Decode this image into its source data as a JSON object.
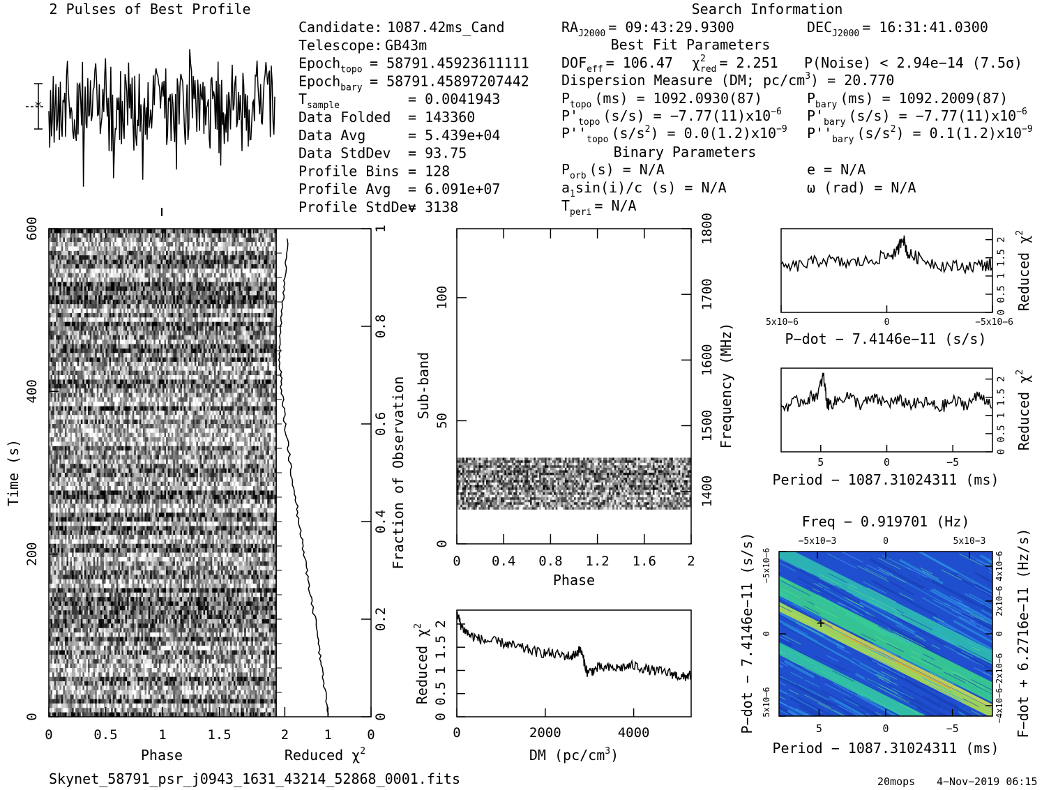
{
  "profile": {
    "title": "2 Pulses of Best Profile"
  },
  "candidate_info": {
    "rows": [
      {
        "label": "Candidate:",
        "value": "1087.42ms_Cand"
      },
      {
        "label": "Telescope:",
        "value": "GB43m"
      },
      {
        "label": "Epoch",
        "sub": "topo",
        "value": "= 58791.45923611111"
      },
      {
        "label": "Epoch",
        "sub": "bary",
        "value": "= 58791.45897207442"
      },
      {
        "label": "T",
        "sub": "sample",
        "value": "=  0.0041943"
      },
      {
        "label": "Data Folded",
        "value": "=  143360"
      },
      {
        "label": "Data Avg",
        "value": "=  5.439e+04"
      },
      {
        "label": "Data StdDev",
        "value": "=  93.75"
      },
      {
        "label": "Profile Bins",
        "value": "=  128"
      },
      {
        "label": "Profile Avg",
        "value": "=  6.091e+07"
      },
      {
        "label": "Profile StdDev",
        "value": "=  3138"
      }
    ]
  },
  "search_info": {
    "title": "Search Information",
    "ra": {
      "label": "RA",
      "sub": "J2000",
      "value": "= 09:43:29.9300"
    },
    "dec": {
      "label": "DEC",
      "sub": "J2000",
      "value": "= 16:31:41.0300"
    },
    "best_fit_title": "Best Fit Parameters",
    "dof": {
      "label": "DOF",
      "sub": "eff",
      "value": "= 106.47"
    },
    "chi2": {
      "label": "χ",
      "sup": "2",
      "sub": "red",
      "value": "= 2.251"
    },
    "pnoise": "P(Noise) < 2.94e−14   (7.5σ)",
    "dm": {
      "text": "Dispersion Measure (DM; pc/cm",
      "sup": "3",
      "tail": ") = 20.770"
    },
    "ptopo": {
      "label": "P",
      "sub": "topo",
      "value": "(ms) =  1092.0930(87)"
    },
    "pbary": {
      "label": "P",
      "sub": "bary",
      "value": "(ms) =  1092.2009(87)"
    },
    "pdot_topo": {
      "label": "P'",
      "sub": "topo",
      "value": "(s/s) = −7.77(11)x10",
      "sup": "−6"
    },
    "pdot_bary": {
      "label": "P'",
      "sub": "bary",
      "value": "(s/s) = −7.77(11)x10",
      "sup": "−6"
    },
    "pddot_topo": {
      "label": "P''",
      "sub": "topo",
      "value": "(s/s",
      "sup2": "2",
      "value2": ") = 0.0(1.2)x10",
      "sup": "−9"
    },
    "pddot_bary": {
      "label": "P''",
      "sub": "bary",
      "value": "(s/s",
      "sup2": "2",
      "value2": ") =  0.1(1.2)x10",
      "sup": "−9"
    },
    "binary_title": "Binary Parameters",
    "porb": {
      "label": "P",
      "sub": "orb",
      "value": "(s) = N/A"
    },
    "ecc": "e = N/A",
    "a1sini": {
      "text": "a",
      "sub": "1",
      "tail": "sin(i)/c (s) = N/A"
    },
    "omega": "ω (rad) = N/A",
    "tperi": {
      "label": "T",
      "sub": "peri",
      "value": "= N/A"
    }
  },
  "chart_data": [
    {
      "id": "time-phase",
      "type": "heatmap",
      "xlabel": "Phase",
      "ylabel": "Time (s)",
      "xlim": [
        0,
        2
      ],
      "ylim": [
        0,
        600
      ],
      "xticks": [
        "0",
        "0.5",
        "1",
        "1.5"
      ],
      "yticks": [
        "0",
        "200",
        "400",
        "600"
      ],
      "colormap": "grayscale"
    },
    {
      "id": "time-chi2",
      "type": "line",
      "xlabel": "Reduced χ2",
      "ylabel": "Fraction of Observation",
      "xlim": [
        2.2,
        0
      ],
      "ylim": [
        0,
        1
      ],
      "xticks": [
        "2",
        "1",
        "0"
      ],
      "yticks": [
        "0",
        "0.2",
        "0.4",
        "0.6",
        "0.8",
        "1"
      ],
      "x": [
        1.0,
        1.05,
        1.15,
        1.22,
        1.3,
        1.4,
        1.5,
        1.58,
        1.68,
        1.75,
        1.85,
        1.92,
        2.0,
        2.05,
        2.1,
        2.12,
        2.1,
        2.05,
        2.0,
        1.95
      ],
      "y": [
        0.0,
        0.05,
        0.1,
        0.15,
        0.2,
        0.25,
        0.3,
        0.35,
        0.4,
        0.45,
        0.5,
        0.55,
        0.6,
        0.65,
        0.7,
        0.75,
        0.8,
        0.85,
        0.9,
        0.98
      ]
    },
    {
      "id": "subband-phase",
      "type": "heatmap",
      "xlabel": "Phase",
      "ylabel": "Sub-band",
      "y2label": "Frequency (MHz)",
      "xlim": [
        0,
        2
      ],
      "ylim": [
        0,
        128
      ],
      "y2lim": [
        1320,
        1800
      ],
      "xticks": [
        "0",
        "0.4",
        "0.8",
        "1.2",
        "1.6",
        "2"
      ],
      "yticks": [
        "0",
        "50",
        "100"
      ],
      "y2ticks": [
        "1400",
        "1500",
        "1600",
        "1700",
        "1800"
      ],
      "band_subbands": [
        14,
        35
      ]
    },
    {
      "id": "dm-chi2",
      "type": "line",
      "xlabel": "DM (pc/cm3)",
      "ylabel": "Reduced χ2",
      "xlim": [
        0,
        5300
      ],
      "ylim": [
        0,
        2.3
      ],
      "xticks": [
        "0",
        "2000",
        "4000"
      ],
      "yticks": [
        "0",
        "0.5",
        "1",
        "1.5",
        "2"
      ],
      "x": [
        0,
        100,
        300,
        600,
        1000,
        1400,
        1800,
        2200,
        2600,
        2800,
        2950,
        3200,
        3600,
        4000,
        4400,
        4800,
        5100,
        5300
      ],
      "y": [
        2.25,
        1.95,
        1.75,
        1.65,
        1.6,
        1.5,
        1.4,
        1.35,
        1.3,
        1.45,
        0.95,
        1.05,
        1.05,
        1.1,
        1.0,
        0.95,
        0.85,
        0.9
      ]
    },
    {
      "id": "pdot-chi2",
      "type": "line",
      "xlabel": "P−dot − 7.4146e−11 (s/s)",
      "ylabel": "Reduced χ2",
      "xticks": [
        "5x10−6",
        "0",
        "−5x10−6"
      ],
      "yticks": [
        "0",
        "0.5",
        "1",
        "1.5",
        "2"
      ],
      "ylim": [
        0,
        2.3
      ],
      "x": [
        -1,
        -0.8,
        -0.6,
        -0.4,
        -0.2,
        0,
        0.1,
        0.15,
        0.2,
        0.3,
        0.5,
        0.7,
        0.9,
        1.0
      ],
      "y": [
        1.2,
        1.3,
        1.45,
        1.35,
        1.4,
        1.55,
        1.65,
        2.1,
        1.6,
        1.5,
        1.3,
        1.25,
        1.3,
        1.3
      ]
    },
    {
      "id": "period-chi2",
      "type": "line",
      "xlabel": "Period − 1087.31024311 (ms)",
      "ylabel": "Reduced χ2",
      "xticks": [
        "5",
        "0",
        "−5"
      ],
      "yticks": [
        "0",
        "0.5",
        "1",
        "1.5",
        "2"
      ],
      "ylim": [
        0,
        2.3
      ],
      "x": [
        8,
        7,
        6,
        5.2,
        4.8,
        4.5,
        4,
        3,
        2,
        1,
        0,
        -1,
        -2,
        -3,
        -4,
        -5,
        -6,
        -7,
        -8
      ],
      "y": [
        1.2,
        1.35,
        1.45,
        1.6,
        2.1,
        1.3,
        1.35,
        1.55,
        1.3,
        1.45,
        1.35,
        1.4,
        1.3,
        1.35,
        1.2,
        1.4,
        1.3,
        1.55,
        1.35
      ]
    },
    {
      "id": "period-pdot",
      "type": "heatmap",
      "title": "Freq − 0.919701 (Hz)",
      "xlabel": "Period − 1087.31024311 (ms)",
      "ylabel": "P−dot − 7.4146e−11 (s/s)",
      "y2label": "F−dot + 6.2716e−11 (Hz/s)",
      "xticks": [
        "5",
        "0",
        "−5"
      ],
      "x2ticks": [
        "−5x10−3",
        "0",
        "5x10−3"
      ],
      "yticks": [
        "5x10−6",
        "0",
        "−5x10−6"
      ],
      "y2ticks": [
        "−4x10−6",
        "−2x10−6",
        "0",
        "2x10−6",
        "4x10−6"
      ],
      "colormap": "rainbow",
      "best_point": {
        "period": 4.8,
        "pdot": 0
      }
    }
  ],
  "footer": {
    "filename": "Skynet_58791_psr_j0943_1631_43214_52868_0001.fits",
    "user": "20mops",
    "date": "4−Nov−2019 06:15"
  }
}
